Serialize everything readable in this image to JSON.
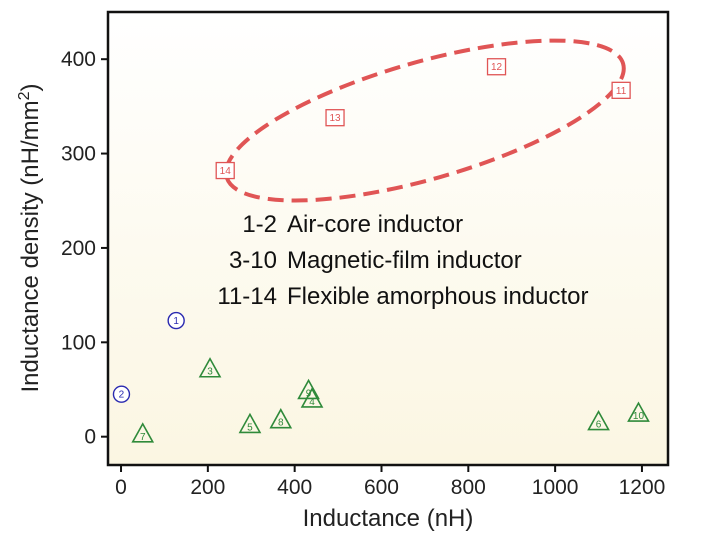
{
  "chart_data": {
    "type": "scatter",
    "xlabel": "Inductance (nH)",
    "ylabel_main": "Inductance density (nH/mm",
    "ylabel_sup": "2",
    "ylabel_close": ")",
    "xlim": [
      -30,
      1260
    ],
    "ylim": [
      -30,
      450
    ],
    "xticks": [
      0,
      200,
      400,
      600,
      800,
      1000,
      1200
    ],
    "yticks": [
      0,
      100,
      200,
      300,
      400
    ],
    "legend": [
      {
        "range": "1-2",
        "text": "Air-core inductor"
      },
      {
        "range": "3-10",
        "text": "Magnetic-film inductor"
      },
      {
        "range": "11-14",
        "text": "Flexible amorphous inductor"
      }
    ],
    "series": [
      {
        "marker": "circle",
        "color": "#2a2ab0",
        "points": [
          {
            "label": "1",
            "x": 127,
            "y": 123
          },
          {
            "label": "2",
            "x": 1,
            "y": 45
          }
        ]
      },
      {
        "marker": "triangle",
        "color": "#2f8a3a",
        "points": [
          {
            "label": "3",
            "x": 205,
            "y": 72
          },
          {
            "label": "4",
            "x": 440,
            "y": 40
          },
          {
            "label": "5",
            "x": 297,
            "y": 13
          },
          {
            "label": "6",
            "x": 1100,
            "y": 16
          },
          {
            "label": "7",
            "x": 50,
            "y": 3
          },
          {
            "label": "8",
            "x": 368,
            "y": 18
          },
          {
            "label": "9",
            "x": 432,
            "y": 49
          },
          {
            "label": "10",
            "x": 1192,
            "y": 25
          }
        ]
      },
      {
        "marker": "square",
        "color": "#e05555",
        "points": [
          {
            "label": "11",
            "x": 1152,
            "y": 367
          },
          {
            "label": "12",
            "x": 865,
            "y": 392
          },
          {
            "label": "13",
            "x": 493,
            "y": 338
          },
          {
            "label": "14",
            "x": 240,
            "y": 282
          }
        ]
      }
    ],
    "annotation_ellipse": {
      "color": "#e05555",
      "style": "dashed",
      "x_center": 700,
      "y_center": 335,
      "semi_major_x": 475,
      "semi_minor_y": 62,
      "angle_deg": -16
    }
  }
}
